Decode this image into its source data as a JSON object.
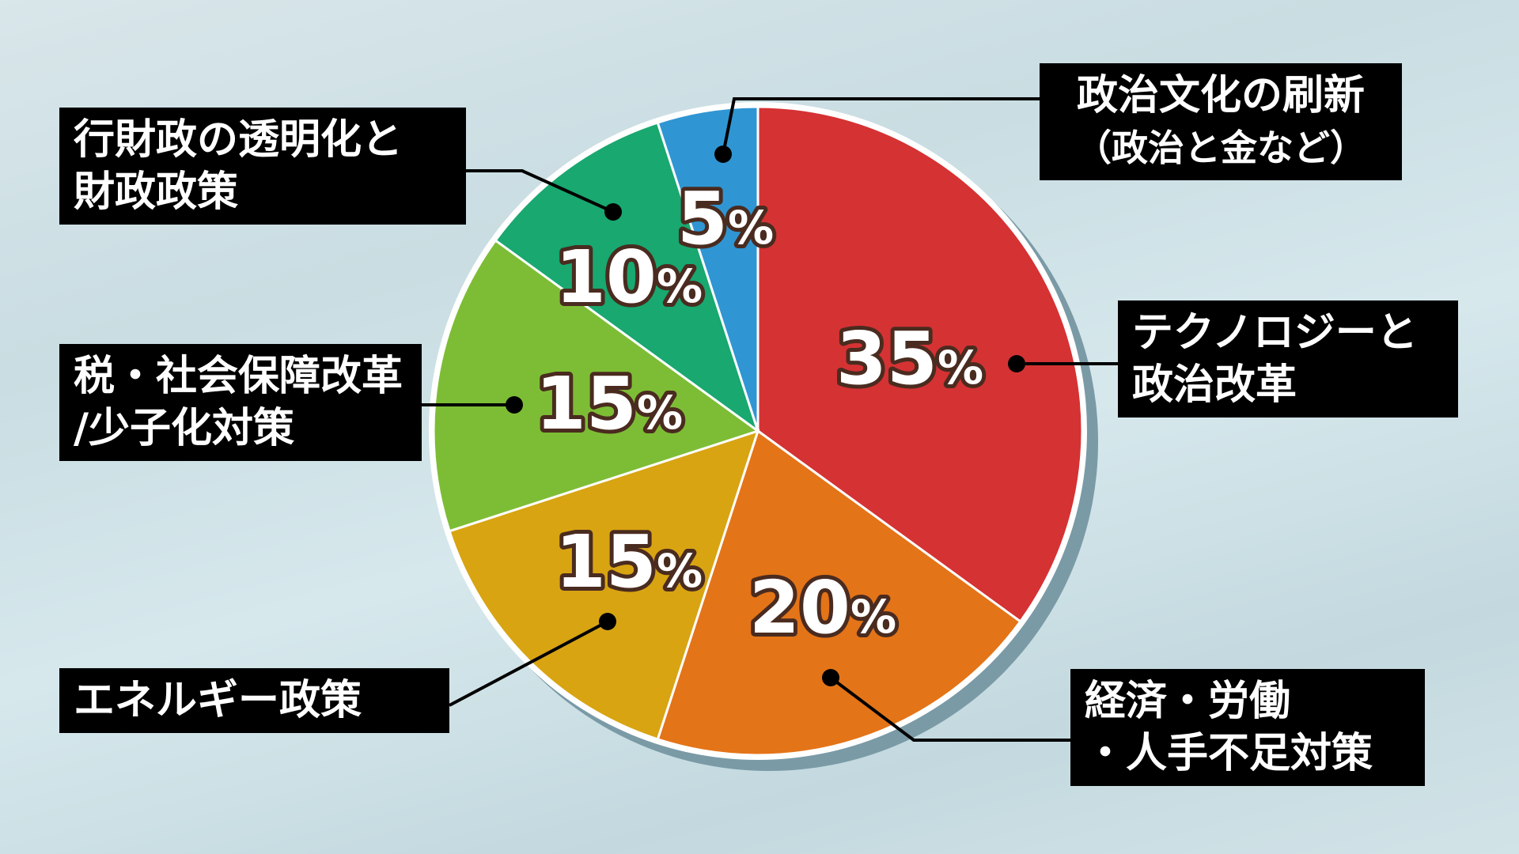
{
  "chart_data": {
    "type": "pie",
    "start": "12 o'clock, clockwise",
    "slices": [
      {
        "label_lines": [
          "テクノロジーと",
          "政治改革"
        ],
        "value": 35,
        "value_label": "35",
        "color": "#d53234"
      },
      {
        "label_lines": [
          "経済・労働",
          "・人手不足対策"
        ],
        "value": 20,
        "value_label": "20",
        "color": "#e47418"
      },
      {
        "label_lines": [
          "エネルギー政策"
        ],
        "value": 15,
        "value_label": "15",
        "color": "#d8a412"
      },
      {
        "label_lines": [
          "税・社会保障改革",
          "/少子化対策"
        ],
        "value": 15,
        "value_label": "15",
        "color": "#7dbd35"
      },
      {
        "label_lines": [
          "行財政の透明化と",
          "財政政策"
        ],
        "value": 10,
        "value_label": "10",
        "color": "#18a870"
      },
      {
        "label_lines": [
          "政治文化の刷新",
          "（政治と金など）"
        ],
        "value": 5,
        "value_label": "5",
        "color": "#2f96d3"
      }
    ],
    "percent_symbol": "%"
  }
}
